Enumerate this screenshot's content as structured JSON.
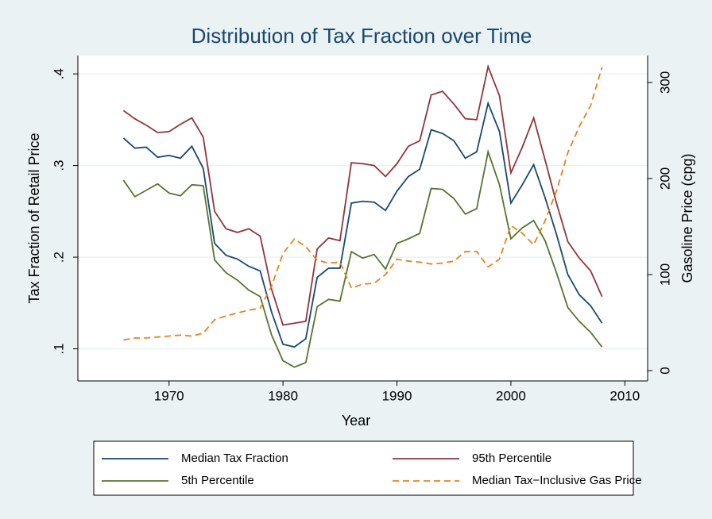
{
  "chart_data": {
    "type": "line",
    "title": "Distribution of Tax Fraction over Time",
    "x_label": "Year",
    "y_label": "Tax Fraction of Retail Price",
    "y2_label": "Gasoline Price (cpg)",
    "x": [
      1966,
      1967,
      1968,
      1969,
      1970,
      1971,
      1972,
      1973,
      1974,
      1975,
      1976,
      1977,
      1978,
      1979,
      1980,
      1981,
      1982,
      1983,
      1984,
      1985,
      1986,
      1987,
      1988,
      1989,
      1990,
      1991,
      1992,
      1993,
      1994,
      1995,
      1996,
      1997,
      1998,
      1999,
      2000,
      2001,
      2002,
      2003,
      2004,
      2005,
      2006,
      2007,
      2008
    ],
    "xlim": [
      1962,
      2012
    ],
    "xticks": [
      1970,
      1980,
      1990,
      2000,
      2010
    ],
    "ylim": [
      0.065,
      0.42
    ],
    "yticks": [
      {
        "value": 0.1,
        "label": ".1"
      },
      {
        "value": 0.2,
        "label": ".2"
      },
      {
        "value": 0.3,
        "label": ".3"
      },
      {
        "value": 0.4,
        "label": ".4"
      }
    ],
    "y2lim": [
      -10.7,
      328
    ],
    "y2ticks": [
      0,
      100,
      200,
      300
    ],
    "grid": true,
    "series": [
      {
        "name": "Median Tax Fraction",
        "color": "#1a476f",
        "dash": false,
        "values": [
          0.33,
          0.319,
          0.32,
          0.309,
          0.311,
          0.308,
          0.321,
          0.297,
          0.215,
          0.202,
          0.198,
          0.19,
          0.185,
          0.14,
          0.105,
          0.102,
          0.111,
          0.178,
          0.188,
          0.188,
          0.259,
          0.261,
          0.26,
          0.251,
          0.272,
          0.288,
          0.296,
          0.339,
          0.335,
          0.327,
          0.308,
          0.315,
          0.368,
          0.337,
          0.259,
          0.279,
          0.301,
          0.265,
          0.225,
          0.181,
          0.159,
          0.147,
          0.128
        ]
      },
      {
        "name": "95th Percentile",
        "color": "#90353b",
        "dash": false,
        "values": [
          0.36,
          0.351,
          0.344,
          0.336,
          0.337,
          0.345,
          0.352,
          0.331,
          0.25,
          0.231,
          0.227,
          0.231,
          0.223,
          0.165,
          0.126,
          0.128,
          0.13,
          0.209,
          0.221,
          0.218,
          0.303,
          0.302,
          0.3,
          0.288,
          0.302,
          0.321,
          0.327,
          0.377,
          0.381,
          0.367,
          0.351,
          0.35,
          0.408,
          0.376,
          0.292,
          0.32,
          0.352,
          0.306,
          0.259,
          0.217,
          0.199,
          0.185,
          0.157
        ]
      },
      {
        "name": "5th Percentile",
        "color": "#55752f",
        "dash": false,
        "values": [
          0.284,
          0.266,
          0.273,
          0.28,
          0.27,
          0.267,
          0.279,
          0.278,
          0.197,
          0.183,
          0.175,
          0.164,
          0.157,
          0.115,
          0.087,
          0.08,
          0.085,
          0.146,
          0.154,
          0.152,
          0.206,
          0.199,
          0.203,
          0.187,
          0.215,
          0.22,
          0.226,
          0.275,
          0.274,
          0.264,
          0.247,
          0.253,
          0.315,
          0.279,
          0.22,
          0.232,
          0.24,
          0.218,
          0.183,
          0.145,
          0.13,
          0.118,
          0.102
        ]
      },
      {
        "name": "Median Tax−Inclusive Gas Price",
        "color": "#e8821e",
        "dash": true,
        "axis": "y2",
        "values": [
          32,
          34,
          34,
          35,
          36,
          37,
          36,
          39,
          53,
          57,
          60,
          63,
          65,
          88,
          122,
          137,
          129,
          115,
          112,
          113,
          86,
          90,
          91,
          100,
          116,
          114,
          113,
          111,
          112,
          114,
          124,
          124,
          108,
          116,
          151,
          143,
          131,
          156,
          187,
          227,
          254,
          276,
          316
        ]
      }
    ]
  }
}
